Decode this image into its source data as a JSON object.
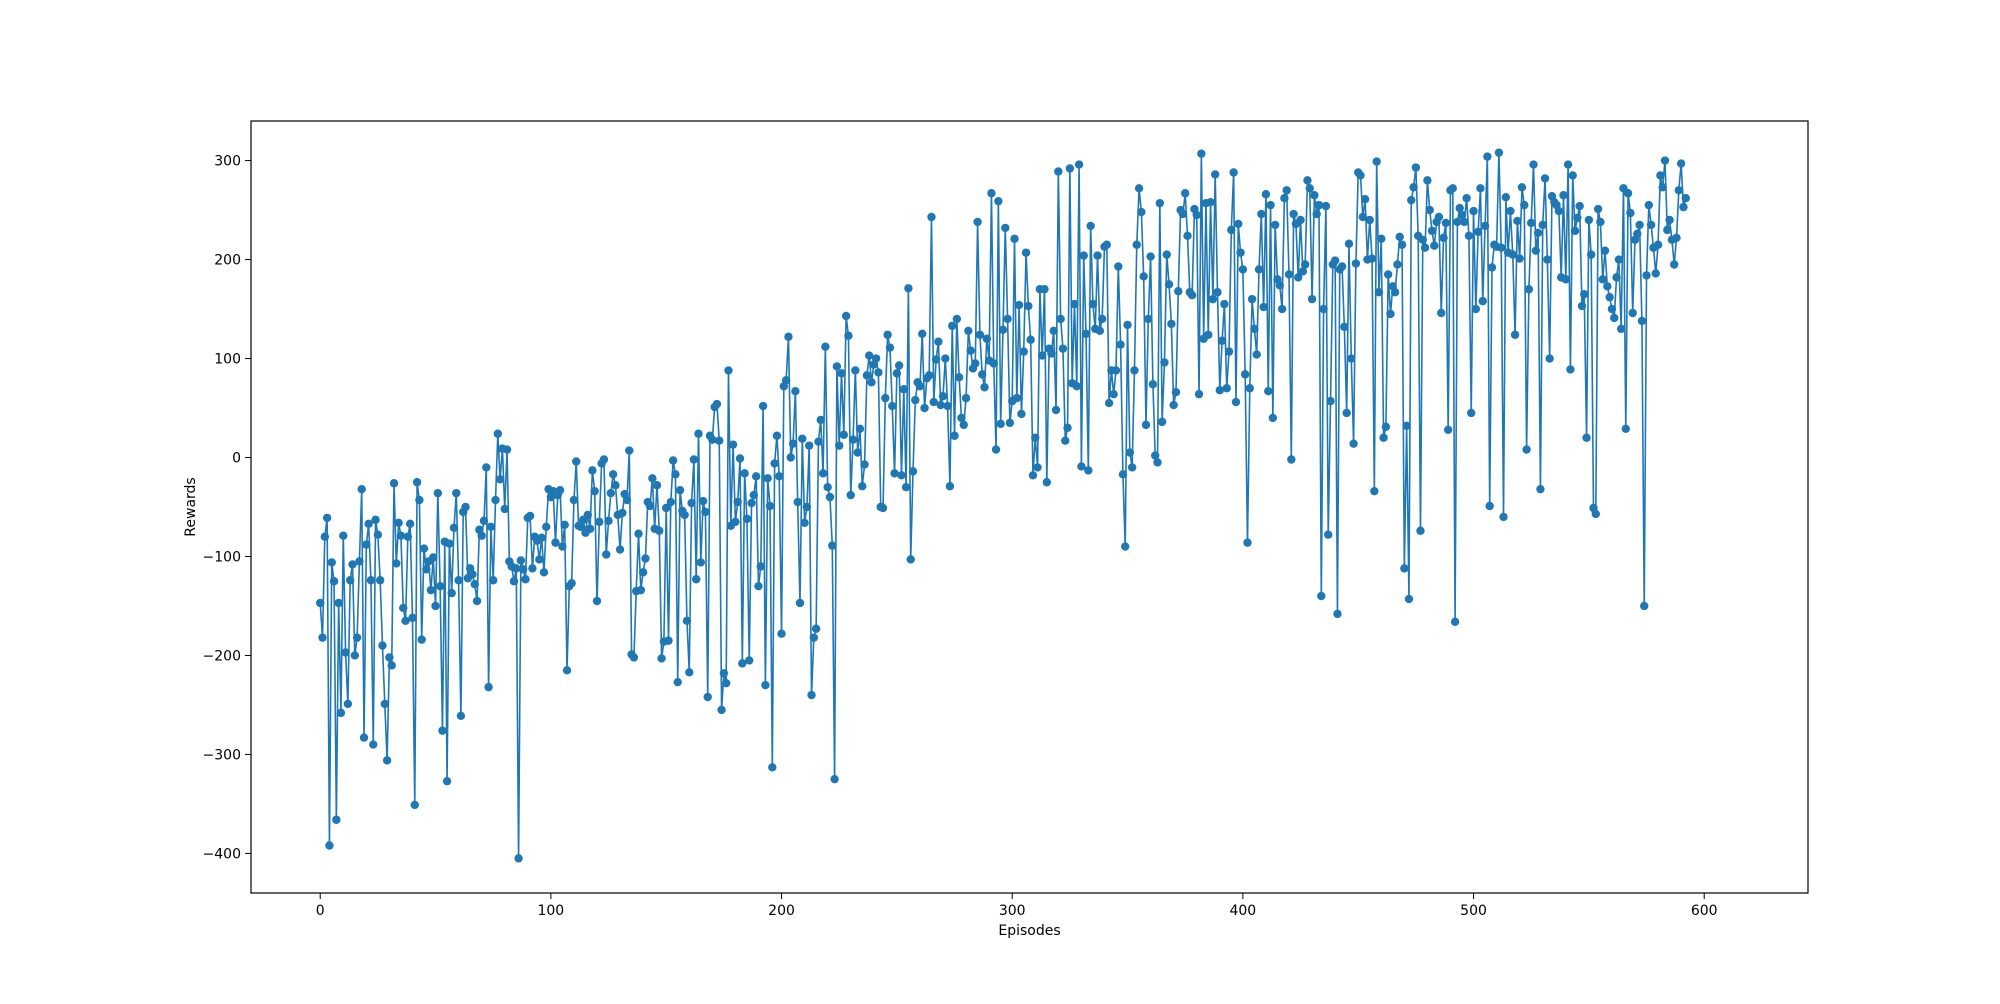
{
  "chart_data": {
    "type": "line",
    "title": "",
    "xlabel": "Episodes",
    "ylabel": "Rewards",
    "xlim": [
      -30,
      645
    ],
    "ylim": [
      -440,
      340
    ],
    "xticks": [
      0,
      100,
      200,
      300,
      400,
      500,
      600
    ],
    "yticks": [
      -400,
      -300,
      -200,
      -100,
      0,
      100,
      200,
      300
    ],
    "grid": false,
    "legend": "none",
    "marker": "circle",
    "color": "#1f77b4",
    "series": [
      {
        "values": [
          -147,
          -182,
          -80,
          -61,
          -392,
          -106,
          -125,
          -366,
          -147,
          -258,
          -79,
          -197,
          -249,
          -124,
          -108,
          -200,
          -182,
          -105,
          -32,
          -283,
          -88,
          -67,
          -124,
          -290,
          -63,
          -78,
          -124,
          -190,
          -249,
          -306,
          -202,
          -210,
          -26,
          -107,
          -66,
          -79,
          -152,
          -165,
          -80,
          -67,
          -162,
          -351,
          -25,
          -43,
          -184,
          -92,
          -113,
          -105,
          -134,
          -101,
          -150,
          -36,
          -130,
          -276,
          -85,
          -327,
          -87,
          -137,
          -71,
          -36,
          -124,
          -261,
          -55,
          -50,
          -122,
          -112,
          -118,
          -128,
          -145,
          -73,
          -79,
          -64,
          -10,
          -232,
          -70,
          -124,
          -43,
          24,
          -22,
          9,
          -52,
          8,
          -105,
          -110,
          -125,
          -112,
          -405,
          -104,
          -113,
          -123,
          -61,
          -59,
          -112,
          -80,
          -84,
          -103,
          -81,
          -116,
          -70,
          -32,
          -40,
          -34,
          -86,
          -38,
          -33,
          -90,
          -68,
          -215,
          -130,
          -127,
          -43,
          -4,
          -69,
          -70,
          -63,
          -76,
          -58,
          -72,
          -13,
          -34,
          -145,
          -65,
          -6,
          -2,
          -98,
          -64,
          -36,
          -17,
          -28,
          -58,
          -93,
          -56,
          -37,
          -43,
          7,
          -199,
          -202,
          -135,
          -77,
          -134,
          -116,
          -102,
          -45,
          -49,
          -21,
          -72,
          -28,
          -74,
          -203,
          -186,
          -51,
          -185,
          -45,
          -3,
          -17,
          -227,
          -33,
          -54,
          -58,
          -165,
          -217,
          -46,
          -2,
          -123,
          24,
          -106,
          -44,
          -55,
          -242,
          22,
          18,
          51,
          54,
          17,
          -255,
          -218,
          -228,
          88,
          -69,
          13,
          -65,
          -45,
          -1,
          -208,
          -16,
          -62,
          -205,
          -46,
          -38,
          -19,
          -130,
          -110,
          52,
          -230,
          -21,
          -49,
          -313,
          -6,
          22,
          -19,
          -178,
          72,
          78,
          122,
          0,
          14,
          67,
          -45,
          -147,
          19,
          -66,
          -50,
          12,
          -240,
          -182,
          -173,
          16,
          38,
          -16,
          112,
          -30,
          -40,
          -89,
          -325,
          92,
          12,
          85,
          23,
          143,
          123,
          -38,
          18,
          88,
          5,
          29,
          -29,
          -7,
          83,
          103,
          76,
          94,
          100,
          86,
          -50,
          -51,
          60,
          124,
          111,
          52,
          -16,
          85,
          93,
          -18,
          69,
          -30,
          171,
          -103,
          -14,
          58,
          76,
          72,
          125,
          50,
          80,
          83,
          243,
          56,
          99,
          117,
          53,
          62,
          100,
          52,
          -29,
          133,
          22,
          140,
          81,
          40,
          33,
          60,
          128,
          108,
          90,
          95,
          238,
          124,
          84,
          71,
          120,
          98,
          267,
          95,
          8,
          259,
          34,
          129,
          232,
          140,
          35,
          57,
          221,
          60,
          154,
          44,
          107,
          207,
          153,
          119,
          -18,
          20,
          -10,
          170,
          103,
          170,
          -25,
          110,
          105,
          128,
          48,
          289,
          140,
          110,
          17,
          30,
          292,
          75,
          155,
          72,
          296,
          -9,
          204,
          125,
          -13,
          234,
          155,
          130,
          204,
          128,
          140,
          213,
          215,
          55,
          88,
          64,
          88,
          193,
          114,
          -17,
          -90,
          134,
          5,
          -10,
          88,
          215,
          272,
          248,
          183,
          33,
          140,
          203,
          74,
          2,
          -5,
          257,
          36,
          96,
          205,
          175,
          135,
          53,
          66,
          168,
          250,
          246,
          267,
          224,
          167,
          164,
          251,
          245,
          64,
          307,
          120,
          257,
          124,
          258,
          160,
          286,
          167,
          68,
          118,
          155,
          70,
          107,
          230,
          288,
          56,
          236,
          207,
          190,
          84,
          -86,
          70,
          160,
          130,
          104,
          190,
          246,
          152,
          266,
          67,
          255,
          40,
          235,
          180,
          174,
          150,
          262,
          270,
          185,
          -2,
          246,
          236,
          182,
          240,
          188,
          195,
          280,
          272,
          160,
          265,
          246,
          255,
          -140,
          150,
          254,
          -78,
          57,
          195,
          199,
          -158,
          190,
          193,
          132,
          45,
          216,
          100,
          14,
          196,
          288,
          285,
          243,
          261,
          200,
          240,
          201,
          -34,
          299,
          167,
          221,
          20,
          31,
          185,
          145,
          173,
          167,
          195,
          223,
          215,
          -112,
          32,
          -143,
          260,
          273,
          293,
          224,
          -74,
          220,
          212,
          280,
          250,
          229,
          214,
          238,
          243,
          146,
          222,
          237,
          28,
          270,
          272,
          -166,
          238,
          252,
          245,
          238,
          262,
          224,
          45,
          249,
          150,
          228,
          272,
          158,
          234,
          304,
          -49,
          192,
          215,
          213,
          308,
          212,
          -60,
          263,
          207,
          249,
          205,
          124,
          239,
          201,
          273,
          255,
          8,
          170,
          237,
          296,
          209,
          227,
          -32,
          235,
          282,
          200,
          100,
          264,
          258,
          255,
          249,
          182,
          265,
          180,
          296,
          89,
          285,
          229,
          242,
          254,
          153,
          165,
          20,
          240,
          205,
          -51,
          -57,
          251,
          238,
          180,
          209,
          173,
          162,
          150,
          141,
          182,
          200,
          130,
          272,
          29,
          267,
          247,
          146,
          220,
          226,
          235,
          138,
          -150,
          184,
          255,
          235,
          212,
          186,
          215,
          285,
          273,
          300,
          230,
          240,
          220,
          195,
          222,
          270,
          297,
          253,
          262
        ]
      }
    ]
  }
}
